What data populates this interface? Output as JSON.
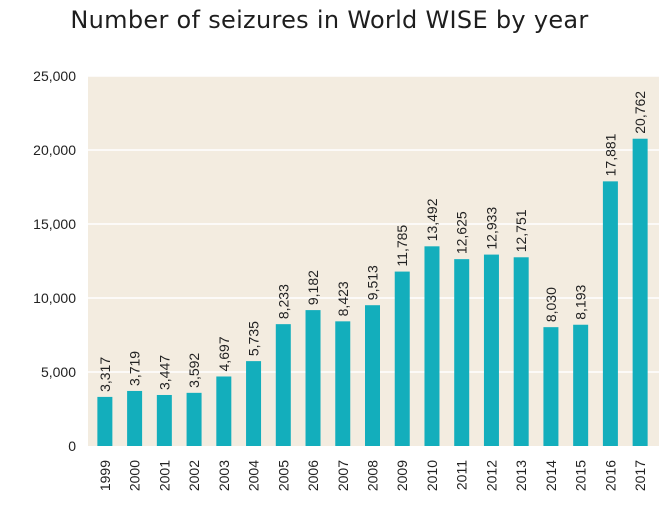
{
  "chart_data": {
    "type": "bar",
    "title": "Number of seizures in World WISE by year",
    "xlabel": "",
    "ylabel": "",
    "ylim": [
      0,
      25000
    ],
    "yticks": [
      0,
      5000,
      10000,
      15000,
      20000,
      25000
    ],
    "ytick_labels": [
      "0",
      "5,000",
      "10,000",
      "15,000",
      "20,000",
      "25,000"
    ],
    "grid": true,
    "legend": "none",
    "categories": [
      "1999",
      "2000",
      "2001",
      "2002",
      "2003",
      "2004",
      "2005",
      "2006",
      "2007",
      "2008",
      "2009",
      "2010",
      "2011",
      "2012",
      "2013",
      "2014",
      "2015",
      "2016",
      "2017"
    ],
    "values": [
      3317,
      3719,
      3447,
      3592,
      4697,
      5735,
      8233,
      9182,
      8423,
      9513,
      11785,
      13492,
      12625,
      12933,
      12751,
      8030,
      8193,
      17881,
      20762
    ],
    "data_labels": [
      "3,317",
      "3,719",
      "3,447",
      "3,592",
      "4,697",
      "5,735",
      "8,233",
      "9,182",
      "8,423",
      "9,513",
      "11,785",
      "13,492",
      "12,625",
      "12,933",
      "12,751",
      "8,030",
      "8,193",
      "17,881",
      "20,762"
    ],
    "colors": {
      "bar": "#13aebc",
      "plot_background": "#f3ece0",
      "gridline": "#ffffff"
    }
  }
}
